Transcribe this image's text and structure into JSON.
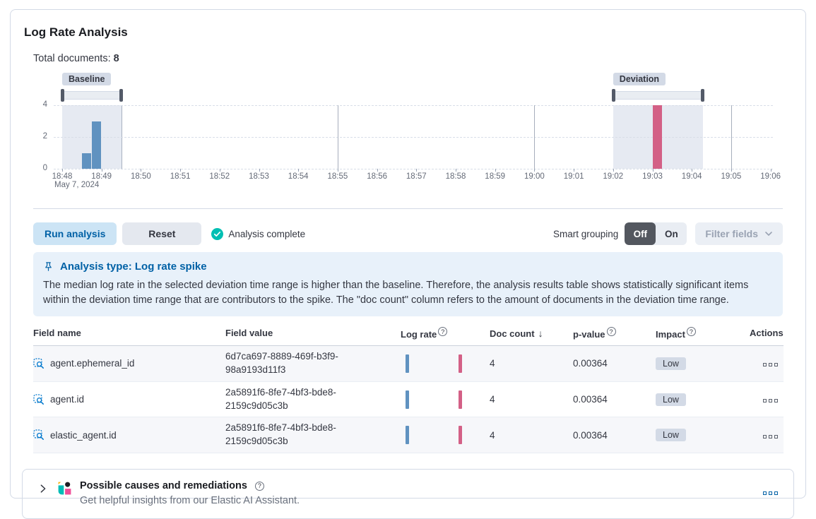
{
  "header": {
    "title": "Log Rate Analysis",
    "total_documents_label": "Total documents:",
    "total_documents_value": "8"
  },
  "chart": {
    "baseline_badge": "Baseline",
    "deviation_badge": "Deviation",
    "date_label": "May 7, 2024",
    "chart_data": {
      "type": "bar",
      "title": "Document count histogram",
      "x_ticks": [
        "18:48",
        "18:49",
        "18:50",
        "18:51",
        "18:52",
        "18:53",
        "18:54",
        "18:55",
        "18:56",
        "18:57",
        "18:58",
        "18:59",
        "19:00",
        "19:01",
        "19:02",
        "19:03",
        "19:04",
        "19:05",
        "19:06"
      ],
      "y_ticks": [
        0,
        2,
        4
      ],
      "ylim": [
        0,
        4
      ],
      "bucket_seconds": 15,
      "bars": [
        {
          "time": "18:48:30",
          "count": 1,
          "series": "baseline"
        },
        {
          "time": "18:48:45",
          "count": 3,
          "series": "baseline"
        },
        {
          "time": "19:03:00",
          "count": 4,
          "series": "deviation"
        }
      ],
      "baseline_range": [
        "18:48:00",
        "18:49:31"
      ],
      "deviation_range": [
        "19:02:00",
        "19:04:17"
      ],
      "series_colors": {
        "baseline": "#6092C0",
        "deviation": "#D36086"
      },
      "five_minute_gridlines": [
        "18:55",
        "19:00",
        "19:05"
      ]
    }
  },
  "controls": {
    "run_analysis_label": "Run analysis",
    "reset_label": "Reset",
    "status_label": "Analysis complete",
    "smart_grouping_label": "Smart grouping",
    "toggle_off_label": "Off",
    "toggle_on_label": "On",
    "toggle_selected": "Off",
    "filter_fields_label": "Filter fields"
  },
  "callout": {
    "title": "Analysis type: Log rate spike",
    "body": "The median log rate in the selected deviation time range is higher than the baseline. Therefore, the analysis results table shows statistically significant items within the deviation time range that are contributors to the spike. The \"doc count\" column refers to the amount of documents in the deviation time range."
  },
  "table": {
    "headers": {
      "field_name": "Field name",
      "field_value": "Field value",
      "log_rate": "Log rate",
      "doc_count": "Doc count",
      "p_value": "p-value",
      "impact": "Impact",
      "actions": "Actions"
    },
    "sort": {
      "column": "doc_count",
      "direction": "desc"
    },
    "rows": [
      {
        "field_name": "agent.ephemeral_id",
        "field_value": "6d7ca697-8889-469f-b3f9-98a9193d11f3",
        "doc_count": "4",
        "p_value": "0.00364",
        "impact": "Low"
      },
      {
        "field_name": "agent.id",
        "field_value": "2a5891f6-8fe7-4bf3-bde8-2159c9d05c3b",
        "doc_count": "4",
        "p_value": "0.00364",
        "impact": "Low"
      },
      {
        "field_name": "elastic_agent.id",
        "field_value": "2a5891f6-8fe7-4bf3-bde8-2159c9d05c3b",
        "doc_count": "4",
        "p_value": "0.00364",
        "impact": "Low"
      }
    ]
  },
  "footer": {
    "title": "Possible causes and remediations",
    "subtitle": "Get helpful insights from our Elastic AI Assistant."
  },
  "icons": {
    "help_glyph": "?",
    "sort_desc_glyph": "↓"
  },
  "colors": {
    "accent_blue": "#0061A6",
    "run_button_bg": "#CCE4F5",
    "baseline_bar": "#6092C0",
    "deviation_bar": "#D36086",
    "brush_region_bg": "#E6EAF2",
    "callout_bg": "#E8F1FA",
    "badge_bg": "#D3DAE6",
    "success_check": "#00BFB3",
    "toggle_selected_bg": "#53575F"
  }
}
